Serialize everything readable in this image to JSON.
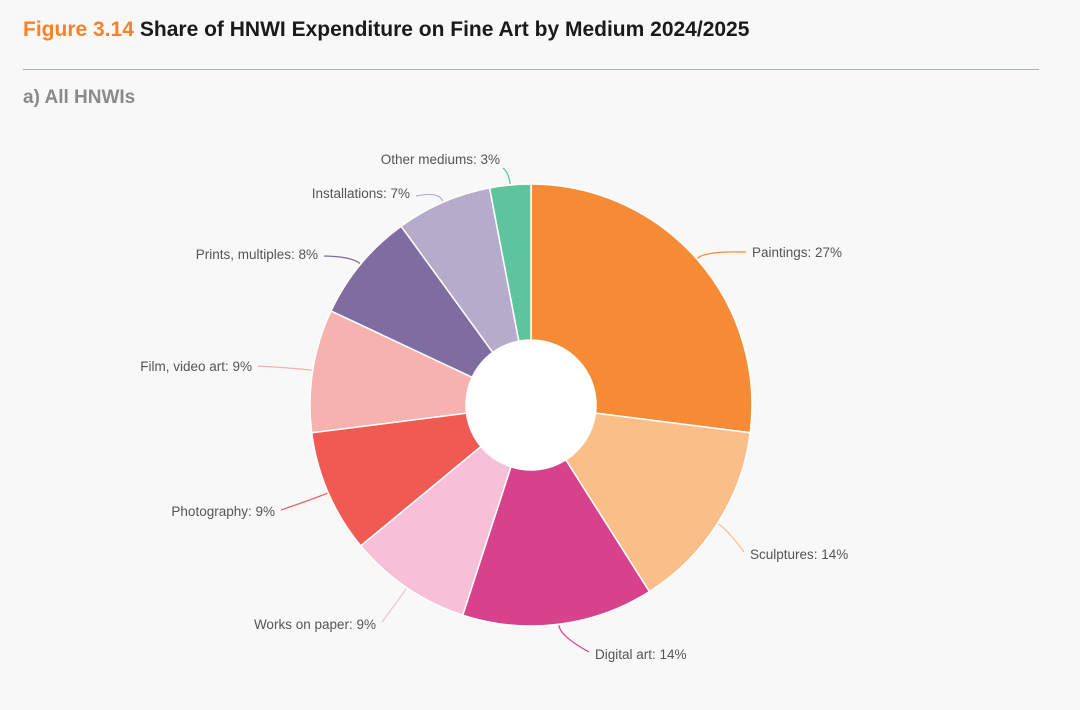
{
  "header": {
    "figure_number": "Figure 3.14",
    "title": "Share of HNWI Expenditure on Fine Art by Medium 2024/2025",
    "subtitle": "a) All HNWIs"
  },
  "colors": {
    "accent": "#f5822a",
    "rule": "#f5a060"
  },
  "chart_data": {
    "type": "pie",
    "variant": "donut",
    "title": "Share of HNWI Expenditure on Fine Art by Medium 2024/2025",
    "subtitle": "a) All HNWIs",
    "unit": "%",
    "slices": [
      {
        "label": "Paintings: 27%",
        "name": "Paintings",
        "value": 27,
        "color": "#f58b35"
      },
      {
        "label": "Sculptures: 14%",
        "name": "Sculptures",
        "value": 14,
        "color": "#fbbe88"
      },
      {
        "label": "Digital art: 14%",
        "name": "Digital art",
        "value": 14,
        "color": "#d8428c"
      },
      {
        "label": "Works on paper: 9%",
        "name": "Works on paper",
        "value": 9,
        "color": "#f7bfd8"
      },
      {
        "label": "Photography: 9%",
        "name": "Photography",
        "value": 9,
        "color": "#f05a52"
      },
      {
        "label": "Film, video art: 9%",
        "name": "Film, video art",
        "value": 9,
        "color": "#f7b1ae"
      },
      {
        "label": "Prints, multiples: 8%",
        "name": "Prints, multiples",
        "value": 8,
        "color": "#7f6ca0"
      },
      {
        "label": "Installations: 7%",
        "name": "Installations",
        "value": 7,
        "color": "#b7abcb"
      },
      {
        "label": "Other mediums: 3%",
        "name": "Other mediums",
        "value": 3,
        "color": "#5ec49e"
      }
    ]
  }
}
